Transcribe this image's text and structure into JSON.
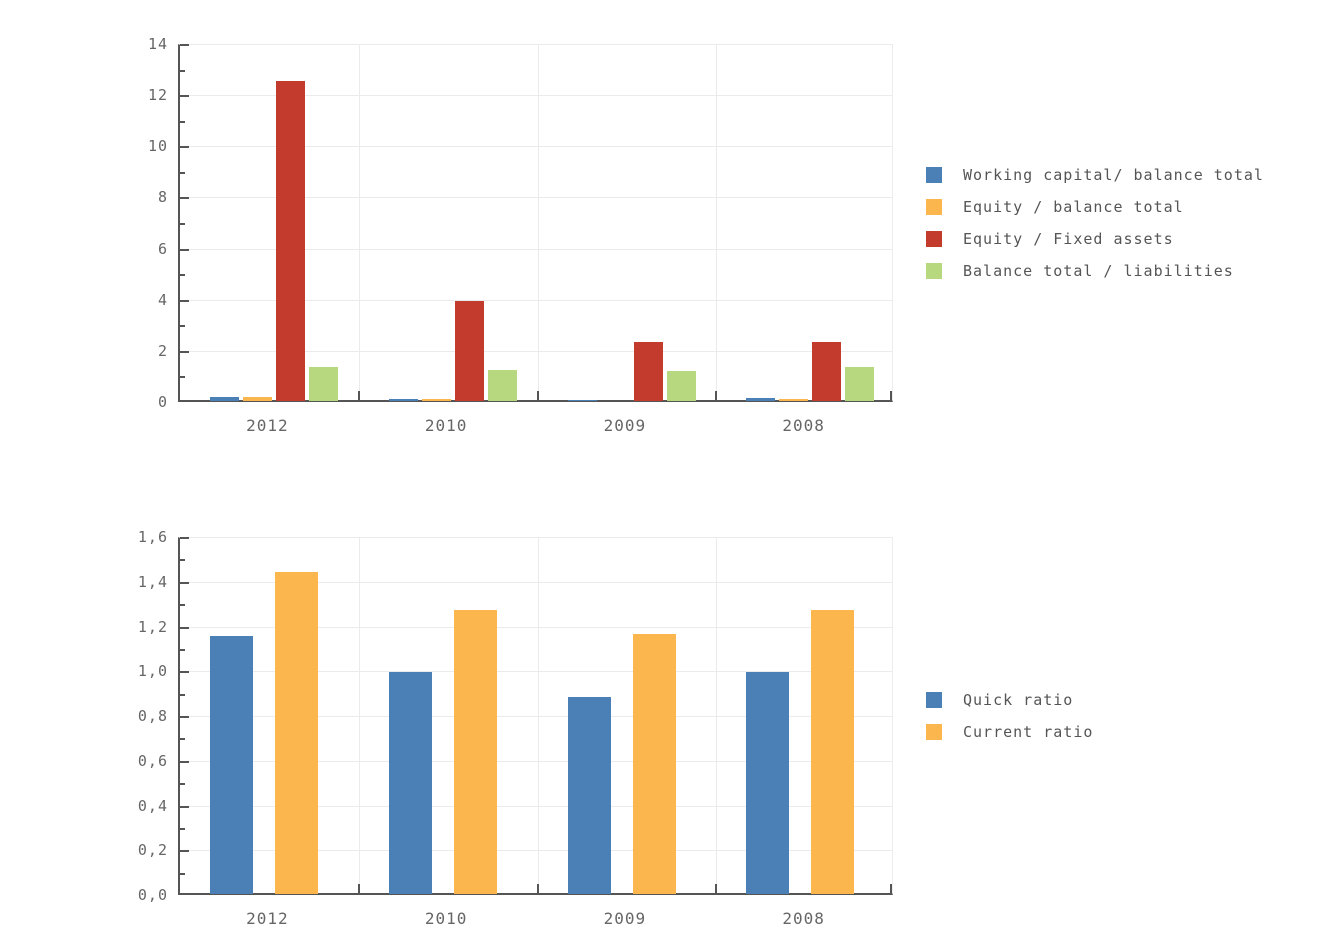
{
  "colors": {
    "blue": "#4b80b6",
    "orange": "#fcb64e",
    "red": "#c23b2c",
    "green": "#b7d87e",
    "axis": "#555555",
    "grid": "#ebebeb",
    "tick_label": "#666666",
    "legend_text": "#555555",
    "background": "#ffffff"
  },
  "chart_data": [
    {
      "type": "bar",
      "title": "",
      "xlabel": "",
      "ylabel": "",
      "categories": [
        "2012",
        "2010",
        "2009",
        "2008"
      ],
      "series": [
        {
          "name": "Working capital/ balance total",
          "color": "#4b80b6",
          "values": [
            0.25,
            0.16,
            0.12,
            0.18
          ]
        },
        {
          "name": "Equity / balance total",
          "color": "#fcb64e",
          "values": [
            0.24,
            0.15,
            0.08,
            0.14
          ]
        },
        {
          "name": "Equity / Fixed assets",
          "color": "#c23b2c",
          "values": [
            12.6,
            4.0,
            2.4,
            2.4
          ]
        },
        {
          "name": "Balance total / liabilities",
          "color": "#b7d87e",
          "values": [
            1.4,
            1.3,
            1.25,
            1.42
          ]
        }
      ],
      "ylim": [
        0,
        14
      ],
      "yticks": [
        0,
        2,
        4,
        6,
        8,
        10,
        12,
        14
      ],
      "ytick_labels": [
        "0",
        "2",
        "4",
        "6",
        "8",
        "10",
        "12",
        "14"
      ],
      "minor_ticks": [
        1,
        3,
        5,
        7,
        9,
        11,
        13
      ],
      "grid": true,
      "legend_position": "right"
    },
    {
      "type": "bar",
      "title": "",
      "xlabel": "",
      "ylabel": "",
      "categories": [
        "2012",
        "2010",
        "2009",
        "2008"
      ],
      "series": [
        {
          "name": "Quick ratio",
          "color": "#4b80b6",
          "values": [
            1.16,
            1.0,
            0.89,
            1.0
          ]
        },
        {
          "name": "Current ratio",
          "color": "#fcb64e",
          "values": [
            1.45,
            1.28,
            1.17,
            1.28
          ]
        }
      ],
      "ylim": [
        0,
        1.6
      ],
      "yticks": [
        0,
        0.2,
        0.4,
        0.6,
        0.8,
        1.0,
        1.2,
        1.4,
        1.6
      ],
      "ytick_labels": [
        "0,0",
        "0,2",
        "0,4",
        "0,6",
        "0,8",
        "1,0",
        "1,2",
        "1,4",
        "1,6"
      ],
      "minor_ticks": [
        0.1,
        0.3,
        0.5,
        0.7,
        0.9,
        1.1,
        1.3,
        1.5
      ],
      "grid": true,
      "legend_position": "right"
    }
  ]
}
